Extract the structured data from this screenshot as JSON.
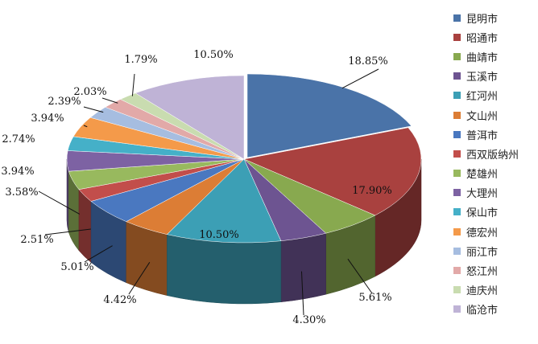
{
  "chart_data": {
    "type": "pie",
    "style": "3d-exploded-first",
    "title": "",
    "legend_position": "right",
    "slices": [
      {
        "label": "昆明市",
        "value": 18.85,
        "value_text": "18.85%",
        "color": "#4a73a8"
      },
      {
        "label": "昭通市",
        "value": 17.9,
        "value_text": "17.90%",
        "color": "#a9413f"
      },
      {
        "label": "曲靖市",
        "value": 5.61,
        "value_text": "5.61%",
        "color": "#88a94f"
      },
      {
        "label": "玉溪市",
        "value": 4.3,
        "value_text": "4.30%",
        "color": "#6d5491"
      },
      {
        "label": "红河州",
        "value": 10.5,
        "value_text": "10.50%",
        "color": "#3c9fb5"
      },
      {
        "label": "文山州",
        "value": 4.42,
        "value_text": "4.42%",
        "color": "#dc7d35"
      },
      {
        "label": "普洱市",
        "value": 5.01,
        "value_text": "5.01%",
        "color": "#4a78c0"
      },
      {
        "label": "西双版纳州",
        "value": 2.51,
        "value_text": "2.51%",
        "color": "#c24e4b"
      },
      {
        "label": "楚雄州",
        "value": 3.58,
        "value_text": "3.58%",
        "color": "#98b95e"
      },
      {
        "label": "大理州",
        "value": 3.94,
        "value_text": "3.94%",
        "color": "#7d62a3"
      },
      {
        "label": "保山市",
        "value": 2.74,
        "value_text": "2.74%",
        "color": "#45b0c8"
      },
      {
        "label": "德宏州",
        "value": 3.94,
        "value_text": "3.94%",
        "color": "#f49a4a"
      },
      {
        "label": "丽江市",
        "value": 2.39,
        "value_text": "2.39%",
        "color": "#a6bde0"
      },
      {
        "label": "怒江州",
        "value": 2.03,
        "value_text": "2.03%",
        "color": "#e2a9a8"
      },
      {
        "label": "迪庆州",
        "value": 1.79,
        "value_text": "1.79%",
        "color": "#c9dcb0"
      },
      {
        "label": "临沧市",
        "value": 10.5,
        "value_text": "10.50%",
        "color": "#bfb3d6"
      }
    ]
  }
}
